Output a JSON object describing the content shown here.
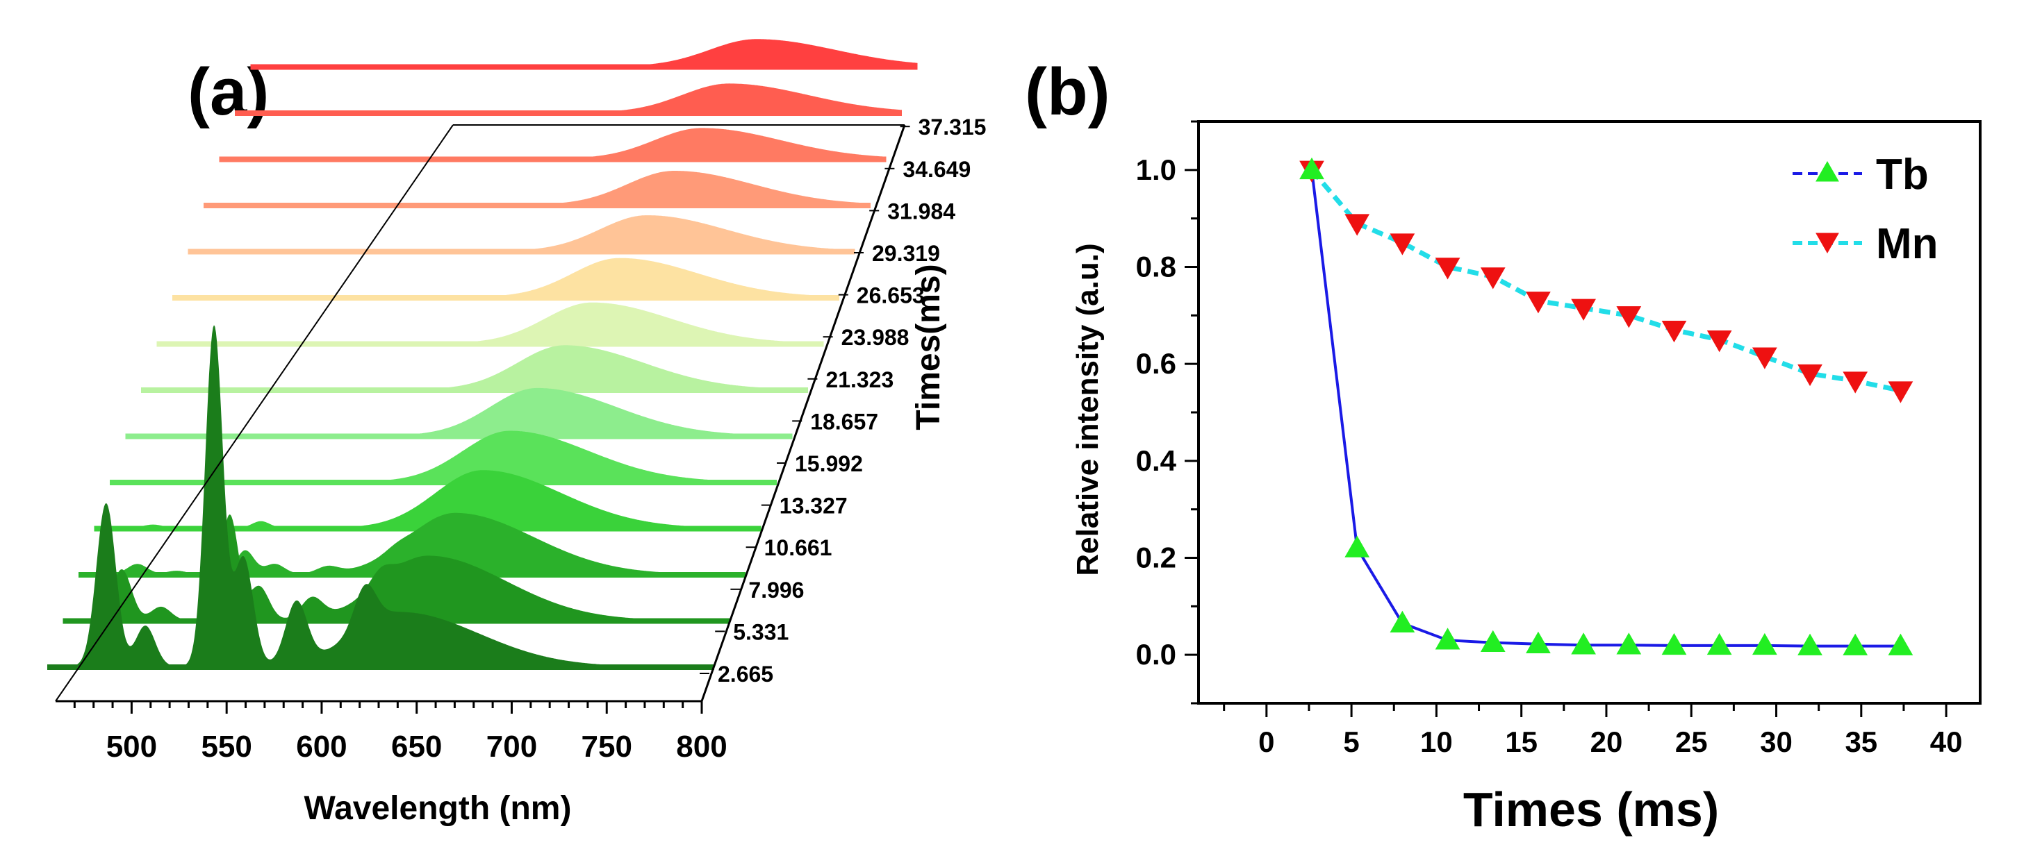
{
  "chart_data": [
    {
      "panel": "(a)",
      "type": "area",
      "title": "",
      "xlabel": "Wavelength (nm)",
      "zlabel": "Times(ms)",
      "xlim": [
        460,
        800
      ],
      "xticks": [
        "500",
        "550",
        "600",
        "650",
        "700",
        "750",
        "800"
      ],
      "time_labels": [
        "2.665",
        "5.331",
        "7.996",
        "10.661",
        "13.327",
        "15.992",
        "18.657",
        "21.323",
        "23.988",
        "26.653",
        "29.319",
        "31.984",
        "34.649",
        "37.315"
      ],
      "series_colors": [
        "#1b7d1b",
        "#20961f",
        "#2bb12b",
        "#3ad23a",
        "#5ae25a",
        "#8ded8d",
        "#b8f2a0",
        "#ddf5b4",
        "#fde2a2",
        "#ffc497",
        "#ff9a78",
        "#ff7a62",
        "#ff5d50",
        "#ff4040"
      ],
      "tb_peaks": [
        {
          "center": 490,
          "width": 5,
          "amplitude": [
            0.48,
            0.15,
            0.03,
            0.01
          ]
        },
        {
          "center": 510,
          "width": 5,
          "amplitude": [
            0.12,
            0.04,
            0.01,
            0
          ]
        },
        {
          "center": 545,
          "width": 4.5,
          "amplitude": [
            1.0,
            0.31,
            0.07,
            0.02
          ]
        },
        {
          "center": 560,
          "width": 5,
          "amplitude": [
            0.32,
            0.1,
            0.03,
            0
          ]
        },
        {
          "center": 587,
          "width": 5.5,
          "amplitude": [
            0.18,
            0.06,
            0.02,
            0
          ]
        },
        {
          "center": 622,
          "width": 5.5,
          "amplitude": [
            0.12,
            0.04,
            0.01,
            0
          ]
        }
      ],
      "mn_band": {
        "centers": [
          640,
          646,
          652,
          658,
          664,
          670,
          676,
          682,
          688,
          694,
          700,
          706,
          712,
          718
        ],
        "amplitudes": [
          0.16,
          0.19,
          0.18,
          0.17,
          0.15,
          0.14,
          0.13,
          0.12,
          0.115,
          0.105,
          0.1,
          0.09,
          0.085,
          0.08
        ]
      }
    },
    {
      "panel": "(b)",
      "type": "line",
      "title": "",
      "xlabel": "Times (ms)",
      "ylabel": "Relative intensity (a.u.)",
      "xlim": [
        -4,
        42
      ],
      "ylim": [
        -0.1,
        1.1
      ],
      "xticks": [
        0,
        5,
        10,
        15,
        20,
        25,
        30,
        35,
        40
      ],
      "yticks": [
        0.0,
        0.2,
        0.4,
        0.6,
        0.8,
        1.0
      ],
      "x": [
        2.665,
        5.331,
        7.996,
        10.661,
        13.327,
        15.992,
        18.657,
        21.323,
        23.988,
        26.653,
        29.319,
        31.984,
        34.649,
        37.315
      ],
      "series": [
        {
          "name": "Tb",
          "line_color": "#1a1ae6",
          "marker": "triangle-up",
          "marker_color": "#22ee22",
          "values": [
            1.0,
            0.22,
            0.065,
            0.03,
            0.025,
            0.022,
            0.02,
            0.02,
            0.019,
            0.019,
            0.019,
            0.018,
            0.018,
            0.018
          ]
        },
        {
          "name": "Mn",
          "line_color": "#22dde8",
          "marker": "triangle-down",
          "marker_color": "#ee1111",
          "values": [
            1.0,
            0.89,
            0.85,
            0.8,
            0.78,
            0.73,
            0.715,
            0.7,
            0.67,
            0.65,
            0.615,
            0.58,
            0.565,
            0.545
          ]
        }
      ],
      "legend_position": "top-right"
    }
  ]
}
